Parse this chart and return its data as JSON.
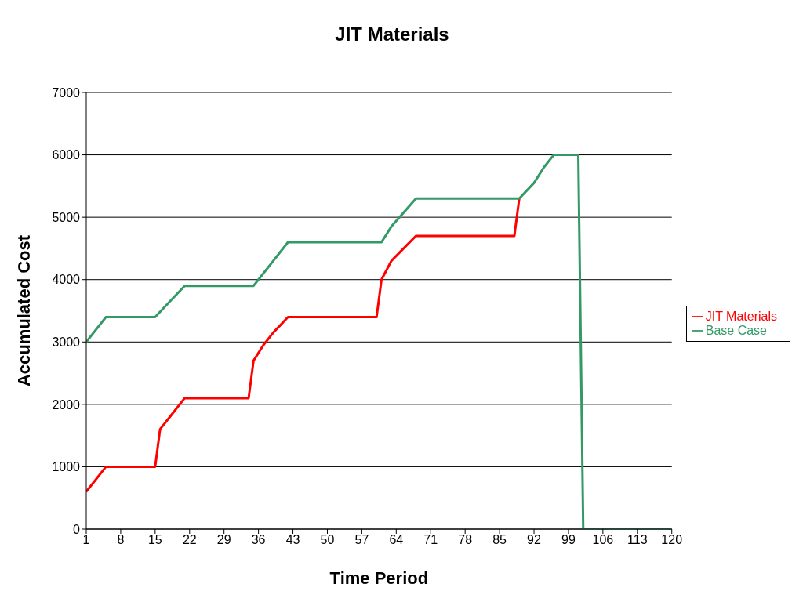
{
  "chart_data": {
    "type": "line",
    "title": "JIT Materials",
    "xlabel": "Time Period",
    "ylabel": "Accumulated Cost",
    "xlim": [
      1,
      120
    ],
    "xticks": [
      1,
      8,
      15,
      22,
      29,
      36,
      43,
      50,
      57,
      64,
      71,
      78,
      85,
      92,
      99,
      106,
      113,
      120
    ],
    "ylim": [
      0,
      7000
    ],
    "yticks": [
      0,
      1000,
      2000,
      3000,
      4000,
      5000,
      6000,
      7000
    ],
    "grid": "y",
    "legend": "right",
    "marker": "none",
    "line_style": "solid",
    "series": [
      {
        "name": "JIT Materials",
        "color": "#ff0000",
        "x": [
          1,
          2,
          5,
          15,
          16,
          18,
          21,
          34,
          35,
          37,
          39,
          42,
          60,
          61,
          63,
          68,
          88,
          89
        ],
        "values": [
          600,
          700,
          1000,
          1000,
          1600,
          1800,
          2100,
          2100,
          2700,
          2950,
          3150,
          3400,
          3400,
          4000,
          4300,
          4700,
          4700,
          5300
        ]
      },
      {
        "name": "Base Case",
        "color": "#339966",
        "x": [
          1,
          3,
          5,
          15,
          18,
          21,
          35,
          37,
          39,
          42,
          61,
          63,
          68,
          89,
          92,
          94,
          96,
          101,
          102,
          120
        ],
        "values": [
          3000,
          3200,
          3400,
          3400,
          3650,
          3900,
          3900,
          4100,
          4300,
          4600,
          4600,
          4850,
          5300,
          5300,
          5550,
          5800,
          6000,
          6000,
          0,
          0
        ]
      }
    ]
  }
}
